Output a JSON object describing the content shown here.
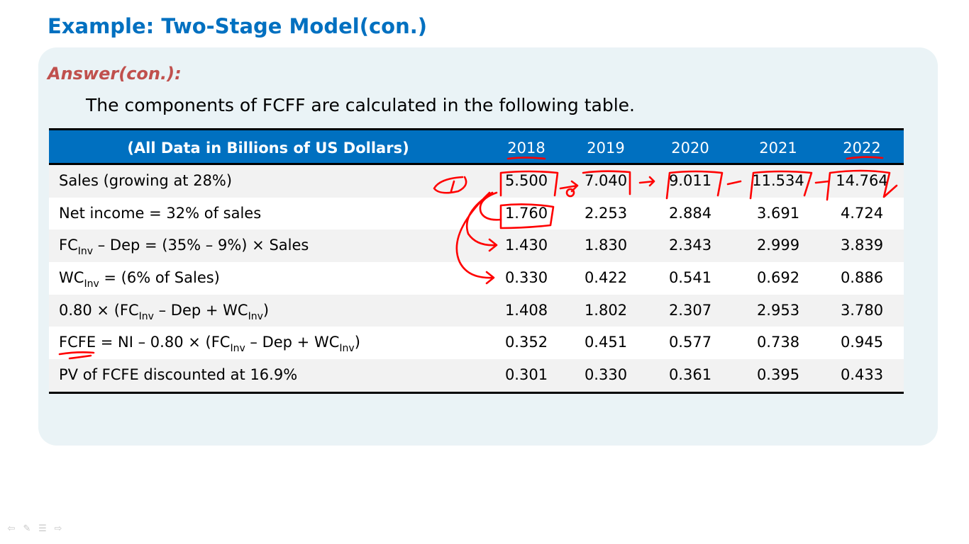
{
  "title": "Example: Two-Stage Model(con.)",
  "answer_label": "Answer(con.):",
  "intro": "The components of FCFF are calculated in the following table.",
  "table": {
    "header_label": "(All Data in Billions of US Dollars)",
    "years": [
      "2018",
      "2019",
      "2020",
      "2021",
      "2022"
    ],
    "rows": [
      {
        "label": "Sales (growing at 28%)",
        "values": [
          "5.500",
          "7.040",
          "9.011",
          "11.534",
          "14.764"
        ]
      },
      {
        "label": "Net income = 32% of sales",
        "values": [
          "1.760",
          "2.253",
          "2.884",
          "3.691",
          "4.724"
        ]
      },
      {
        "label_parts": [
          "FC",
          "Inv",
          " – Dep = (35% – 9%) × Sales"
        ],
        "values": [
          "1.430",
          "1.830",
          "2.343",
          "2.999",
          "3.839"
        ]
      },
      {
        "label_parts": [
          "WC",
          "Inv",
          " = (6% of Sales)"
        ],
        "values": [
          "0.330",
          "0.422",
          "0.541",
          "0.692",
          "0.886"
        ]
      },
      {
        "label_parts": [
          "0.80 × (FC",
          "Inv",
          " – Dep + WC",
          "Inv",
          ")"
        ],
        "values": [
          "1.408",
          "1.802",
          "2.307",
          "2.953",
          "3.780"
        ]
      },
      {
        "label_parts": [
          "FCFE",
          " = NI – 0.80 × (FC",
          "Inv",
          " – Dep + WC",
          "Inv",
          ")"
        ],
        "values": [
          "0.352",
          "0.451",
          "0.577",
          "0.738",
          "0.945"
        ]
      },
      {
        "label": "PV of FCFE discounted at 16.9%",
        "values": [
          "0.301",
          "0.330",
          "0.361",
          "0.395",
          "0.433"
        ]
      }
    ]
  },
  "annotations": {
    "ink_color": "#ff0000"
  },
  "toolbar_icons": [
    "prev-arrow-icon",
    "pen-icon",
    "menu-icon",
    "next-arrow-icon"
  ]
}
